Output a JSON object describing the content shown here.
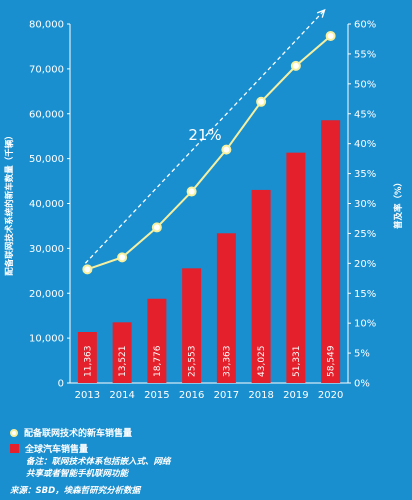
{
  "chart_data": {
    "type": "bar",
    "categories": [
      "2013",
      "2014",
      "2015",
      "2016",
      "2017",
      "2018",
      "2019",
      "2020"
    ],
    "series": [
      {
        "name": "全球汽车销售量",
        "chart_type": "bar",
        "axis": "left",
        "values": [
          11363,
          13521,
          18776,
          25553,
          33363,
          43025,
          51331,
          58549
        ],
        "value_labels": [
          "11,363",
          "13,521",
          "18,776",
          "25,553",
          "33,363",
          "43,025",
          "51,331",
          "58,549"
        ],
        "color": "#e3202b"
      },
      {
        "name": "配备联网技术的新车销售量",
        "chart_type": "line",
        "axis": "right",
        "values": [
          19,
          21,
          26,
          32,
          39,
          47,
          53,
          58
        ],
        "color": "#f5f0a0"
      }
    ],
    "y_left": {
      "label": "配备联网技术系统的新车数量（千辆）",
      "lim": [
        0,
        80000
      ],
      "ticks": [
        0,
        10000,
        20000,
        30000,
        40000,
        50000,
        60000,
        70000,
        80000
      ],
      "tick_labels": [
        "0",
        "10,000",
        "20,000",
        "30,000",
        "40,000",
        "50,000",
        "60,000",
        "70,000",
        "80,000"
      ]
    },
    "y_right": {
      "label": "普及率（%）",
      "lim": [
        0,
        60
      ],
      "ticks": [
        0,
        5,
        10,
        15,
        20,
        25,
        30,
        35,
        40,
        45,
        50,
        55,
        60
      ],
      "tick_labels": [
        "0%",
        "5%",
        "10%",
        "15%",
        "20%",
        "25%",
        "30%",
        "35%",
        "40%",
        "45%",
        "50%",
        "55%",
        "60%"
      ]
    },
    "annotation": "21%",
    "grid": false
  },
  "legend": {
    "line_label": "配备联网技术的新车销售量",
    "bar_label": "全球汽车销售量",
    "note": "备注：联网技术体系包括嵌入式、网络\n共享或者智能手机联网功能",
    "source": "来源：SBD，埃森哲研究分析数据"
  },
  "colors": {
    "background": "#1a8fd0",
    "bar": "#e3202b",
    "line": "#f5f0a0",
    "axis": "#ffffff"
  }
}
